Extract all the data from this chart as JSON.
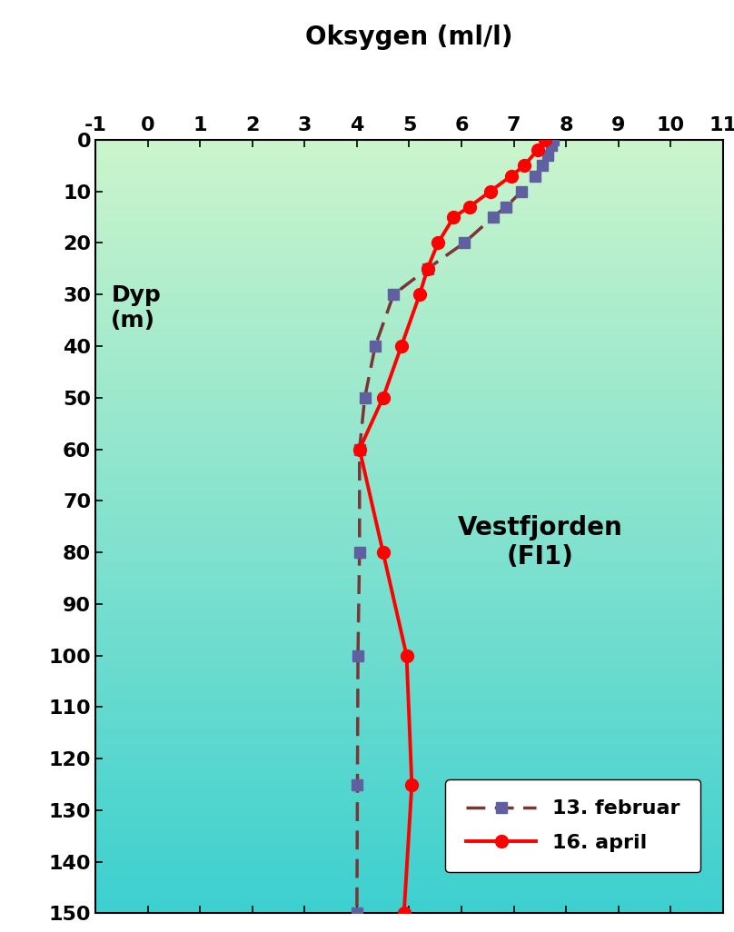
{
  "title": "Oksygen (ml/l)",
  "station_label": "Vestfjorden\n(FI1)",
  "dyp_label": "Dyp\n(m)",
  "xlim": [
    -1,
    11
  ],
  "ylim": [
    150,
    0
  ],
  "xticks": [
    -1,
    0,
    1,
    2,
    3,
    4,
    5,
    6,
    7,
    8,
    9,
    10,
    11
  ],
  "yticks": [
    0,
    10,
    20,
    30,
    40,
    50,
    60,
    70,
    80,
    90,
    100,
    110,
    120,
    130,
    140,
    150
  ],
  "feb_depth": [
    0,
    1,
    3,
    5,
    7,
    10,
    13,
    15,
    20,
    25,
    30,
    40,
    50,
    60,
    80,
    100,
    125,
    150
  ],
  "feb_oxygen": [
    7.75,
    7.72,
    7.65,
    7.55,
    7.4,
    7.15,
    6.85,
    6.6,
    6.05,
    5.35,
    4.7,
    4.35,
    4.15,
    4.05,
    4.05,
    4.02,
    4.01,
    4.0
  ],
  "apr_depth": [
    0,
    2,
    5,
    7,
    10,
    13,
    15,
    20,
    25,
    30,
    40,
    50,
    60,
    80,
    100,
    125,
    150
  ],
  "apr_oxygen": [
    7.6,
    7.45,
    7.2,
    6.95,
    6.55,
    6.15,
    5.85,
    5.55,
    5.35,
    5.2,
    4.85,
    4.5,
    4.05,
    4.5,
    4.95,
    5.05,
    4.9
  ],
  "feb_color": "#7B3535",
  "feb_marker_color": "#6060a0",
  "apr_color": "#FF0000",
  "legend_feb": "13. februar",
  "legend_apr": "16. april",
  "bg_color_top": "#ccf5cc",
  "bg_color_bottom": "#3dd0d0",
  "title_fontsize": 20,
  "tick_fontsize": 16,
  "legend_fontsize": 16,
  "station_fontsize": 20,
  "dyp_fontsize": 18
}
